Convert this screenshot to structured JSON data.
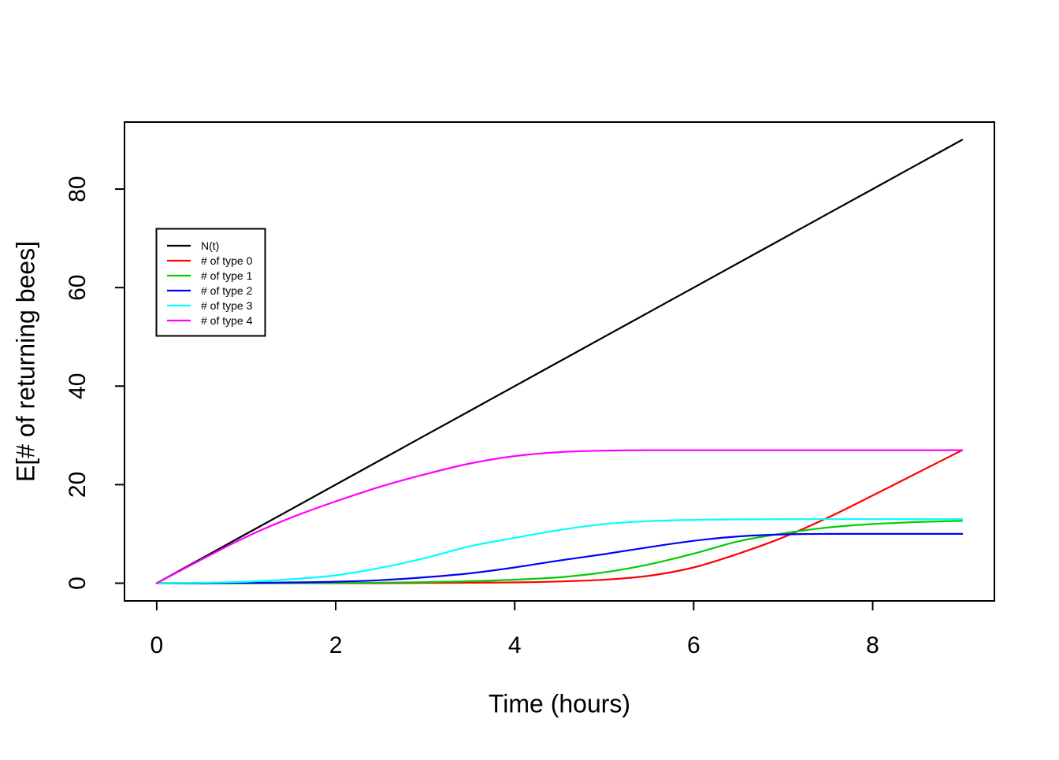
{
  "figure": {
    "background": "#ffffff",
    "frame_color": "#000000"
  },
  "chart_data": {
    "type": "line",
    "title": "",
    "xlabel": "Time (hours)",
    "ylabel": "E[# of returning bees]",
    "xlim": [
      0,
      9
    ],
    "ylim": [
      0,
      90
    ],
    "x_ticks": [
      0,
      2,
      4,
      6,
      8
    ],
    "y_ticks": [
      0,
      20,
      40,
      60,
      80
    ],
    "grid": false,
    "legend": {
      "position": "upper-left",
      "border": true
    },
    "x": [
      0,
      0.5,
      1,
      1.5,
      2,
      2.5,
      3,
      3.5,
      4,
      4.5,
      5,
      5.5,
      6,
      6.5,
      7,
      7.5,
      8,
      8.5,
      9
    ],
    "series": [
      {
        "name": "N(t)",
        "color": "#000000",
        "values": [
          0,
          5,
          10,
          15,
          20,
          25,
          30,
          35,
          40,
          45,
          50,
          55,
          60,
          65,
          70,
          75,
          80,
          85,
          90
        ]
      },
      {
        "name": "# of type 0",
        "color": "#FF0000",
        "values": [
          0,
          0,
          0,
          0,
          0,
          0,
          0.05,
          0.1,
          0.15,
          0.35,
          0.7,
          1.5,
          3.2,
          6.0,
          9.3,
          13.3,
          17.8,
          22.4,
          27
        ]
      },
      {
        "name": "# of type 1",
        "color": "#00CD00",
        "values": [
          0,
          0,
          0,
          0,
          0.05,
          0.1,
          0.2,
          0.4,
          0.7,
          1.2,
          2.2,
          3.8,
          6.0,
          8.5,
          10.1,
          11.3,
          12.0,
          12.4,
          12.65
        ]
      },
      {
        "name": "# of type 2",
        "color": "#0000FF",
        "values": [
          0,
          0,
          0.05,
          0.15,
          0.3,
          0.6,
          1.2,
          2.0,
          3.2,
          4.6,
          5.9,
          7.3,
          8.6,
          9.5,
          9.9,
          10,
          10,
          10,
          10
        ]
      },
      {
        "name": "# of type 3",
        "color": "#00FFFF",
        "values": [
          0,
          0.1,
          0.3,
          0.8,
          1.6,
          3.1,
          5.1,
          7.5,
          9.2,
          10.8,
          12.0,
          12.6,
          12.85,
          12.95,
          13,
          13,
          13,
          13,
          13
        ]
      },
      {
        "name": "# of type 4",
        "color": "#FF00FF",
        "values": [
          0,
          4.8,
          9.4,
          13.3,
          16.6,
          19.6,
          22.1,
          24.3,
          25.8,
          26.6,
          26.9,
          27,
          27,
          27,
          27,
          27,
          27,
          27,
          27
        ]
      }
    ]
  }
}
